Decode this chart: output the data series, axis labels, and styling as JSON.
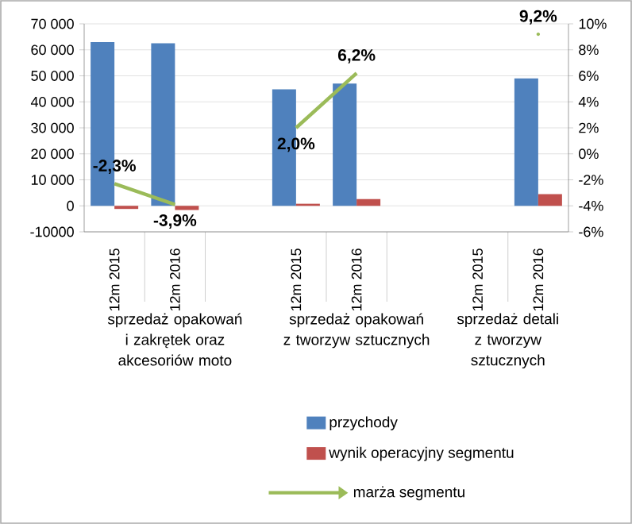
{
  "chart_data": {
    "type": "bar",
    "categories": [
      "12m 2015",
      "12m 2016",
      null,
      "12m 2015",
      "12m 2016",
      null,
      "12m 2015",
      "12m 2016"
    ],
    "series": [
      {
        "name": "przychody",
        "color": "#4f81bd",
        "values": [
          63000,
          62500,
          null,
          44800,
          47000,
          null,
          null,
          49000
        ]
      },
      {
        "name": "wynik operacyjny segmentu",
        "color": "#c0504d",
        "values": [
          -1200,
          -1600,
          null,
          800,
          2600,
          null,
          null,
          4500
        ]
      },
      {
        "name": "marża segmentu",
        "color": "#9bbb59",
        "type": "line",
        "axis": "y2",
        "values": [
          -2.3,
          -3.9,
          null,
          2.0,
          6.2,
          null,
          null,
          9.2
        ],
        "value_labels": [
          "-2,3%",
          "-3,9%",
          null,
          "2,0%",
          "6,2%",
          null,
          null,
          "9,2%"
        ]
      }
    ],
    "ylim": [
      -10000,
      70000
    ],
    "yticks": [
      {
        "value": 70000,
        "label": "70 000"
      },
      {
        "value": 60000,
        "label": "60 000"
      },
      {
        "value": 50000,
        "label": "50 000"
      },
      {
        "value": 40000,
        "label": "40 000"
      },
      {
        "value": 30000,
        "label": "30 000"
      },
      {
        "value": 20000,
        "label": "20 000"
      },
      {
        "value": 10000,
        "label": "10 000"
      },
      0,
      -10000
    ],
    "y2lim": [
      -6,
      10
    ],
    "y2ticks": [
      {
        "value": 10,
        "label": "10%"
      },
      {
        "value": 8,
        "label": "8%"
      },
      {
        "value": 6,
        "label": "6%"
      },
      {
        "value": 4,
        "label": "4%"
      },
      {
        "value": 2,
        "label": "2%"
      },
      {
        "value": 0,
        "label": "0%"
      },
      {
        "value": -2,
        "label": "-2%"
      },
      {
        "value": -4,
        "label": "-4%"
      },
      {
        "value": -6,
        "label": "-6%"
      }
    ],
    "annotations": [
      "sprzedaż opakowań i zakrętek oraz akcesoriów moto",
      "sprzedaż opakowań z tworzyw sztucznych",
      "sprzedaż detali z tworzyw sztucznych"
    ],
    "grid": "y",
    "legend": "bottom",
    "marker": "none"
  }
}
